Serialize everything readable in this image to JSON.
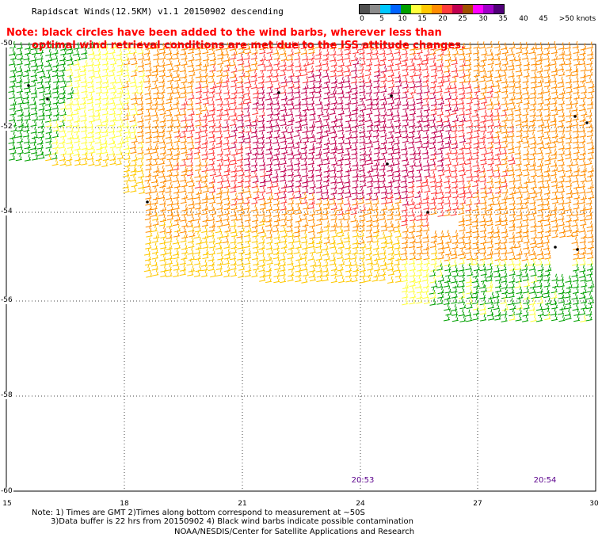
{
  "title": "Rapidscat Winds(12.5KM) v1.1 20150902 descending",
  "note": {
    "line1": "Note: black circles have been added to the wind barbs, wherever less than",
    "line2": "optimal wind retrieval conditions are met due to the ISS attitude changes."
  },
  "legend": {
    "labels": [
      "0",
      "5",
      "10",
      "15",
      "20",
      "25",
      "30",
      "35",
      "40",
      "45",
      ">50 knots"
    ],
    "colors": [
      "#505050",
      "#8c8c8c",
      "#00c8ff",
      "#0064ff",
      "#00a000",
      "#ffff3c",
      "#ffc800",
      "#ff8c00",
      "#ff3c3c",
      "#c00050",
      "#a05000",
      "#ff00ff",
      "#a000c8",
      "#500078"
    ]
  },
  "axes": {
    "lat_labels": [
      "-50",
      "-52",
      "-54",
      "-56",
      "-58",
      "-60"
    ],
    "lon_labels": [
      "15",
      "18",
      "21",
      "24",
      "27",
      "30"
    ]
  },
  "times": [
    "20:53",
    "20:54"
  ],
  "footer": {
    "line1": "Note: 1) Times are GMT 2)Times along bottom correspond to measurement at ~50S",
    "line2": "3)Data buffer is 22 hrs from 20150902 4) Black wind barbs indicate possible contamination",
    "line3": "NOAA/NESDIS/Center for Satellite Applications and Research"
  }
}
